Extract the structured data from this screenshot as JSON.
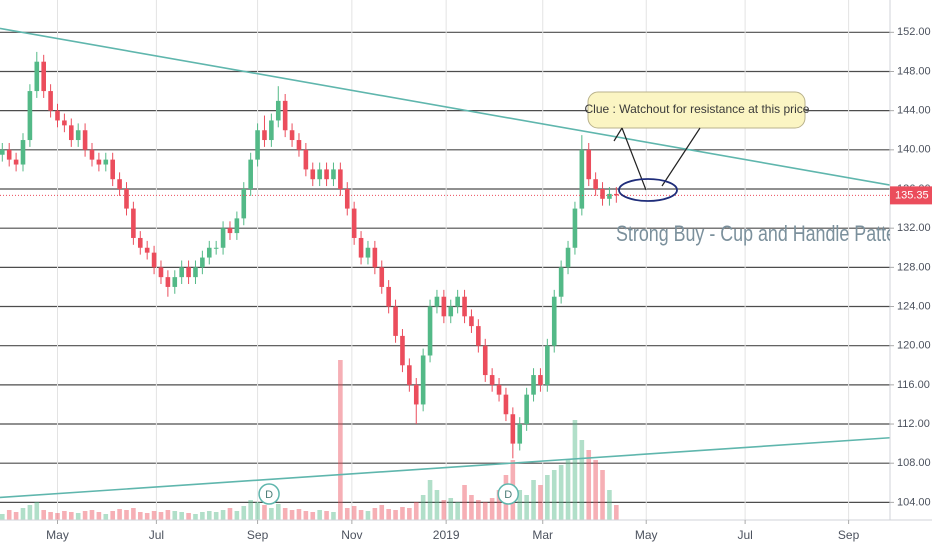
{
  "chart_data": {
    "type": "candlestick",
    "x": [
      1,
      4,
      7,
      10,
      13,
      16,
      19,
      22,
      25,
      28,
      31,
      34,
      37,
      40,
      43,
      46,
      49,
      52,
      55,
      58,
      61,
      64,
      67,
      70,
      73,
      76,
      79,
      82,
      85,
      88,
      91,
      94,
      97,
      100,
      103,
      106,
      109,
      112,
      115,
      118,
      121,
      124,
      127,
      130,
      133,
      136,
      139,
      142,
      145,
      148,
      151,
      154,
      157,
      160,
      163,
      166,
      169,
      172,
      175,
      178,
      181,
      184,
      187,
      190,
      193,
      196,
      199,
      202,
      205,
      208,
      211,
      214,
      217,
      220,
      223,
      226,
      229,
      232,
      235,
      238,
      241,
      244,
      247,
      250,
      253,
      256,
      259,
      262,
      265,
      268
    ],
    "open": [
      139.5,
      140,
      139,
      138.5,
      141,
      146,
      149,
      146,
      144,
      143,
      142.5,
      141,
      142,
      140,
      139,
      138.5,
      139,
      137,
      136,
      134,
      131,
      130,
      129.5,
      128,
      127,
      126,
      127,
      128,
      127,
      128,
      129,
      130,
      130,
      132,
      131.5,
      133,
      136,
      139,
      142,
      141,
      143,
      145,
      142,
      141,
      140,
      138,
      137,
      138,
      137,
      138,
      136,
      134,
      131,
      129,
      130,
      128,
      126,
      124,
      121,
      118,
      116,
      114,
      119,
      124,
      125,
      123,
      124,
      125,
      123,
      122,
      120,
      117,
      116,
      115,
      113,
      110,
      112,
      115,
      117,
      116,
      120,
      125,
      128,
      130,
      134,
      140,
      137,
      136,
      135,
      135.5
    ],
    "high": [
      140.7,
      140.7,
      139.7,
      141.7,
      146.7,
      150,
      149.7,
      146.7,
      144.7,
      143.7,
      143.2,
      142.7,
      142.7,
      140.7,
      139.7,
      139.7,
      139.7,
      137.7,
      136.7,
      134.7,
      131.7,
      130.7,
      130.2,
      128.7,
      127.7,
      127.7,
      128.7,
      128.7,
      128.7,
      129.7,
      130.7,
      130.7,
      132.7,
      132.7,
      133.7,
      136.7,
      139.7,
      142.7,
      143.5,
      143.7,
      146.5,
      145.7,
      142.7,
      141.7,
      140.7,
      138.7,
      138.7,
      138.7,
      138.7,
      138.7,
      136.7,
      134.7,
      131.7,
      130.7,
      130.7,
      128.7,
      126.7,
      124.7,
      121.7,
      118.7,
      116.7,
      119.7,
      124.7,
      125.7,
      125.7,
      124.7,
      125.7,
      125.7,
      123.7,
      122.7,
      120.7,
      117.7,
      116.7,
      115.7,
      113.7,
      112.7,
      115.7,
      117.7,
      117.7,
      120.7,
      125.7,
      128.7,
      130.7,
      134.7,
      141.5,
      140.7,
      137.7,
      136.7,
      136.2,
      136.2
    ],
    "low": [
      138.8,
      138.3,
      137.8,
      137.8,
      140.3,
      145.3,
      145.3,
      143.3,
      142.3,
      141.8,
      140.3,
      140.3,
      139.3,
      138.3,
      137.8,
      137.8,
      136.3,
      135.3,
      133.3,
      130.3,
      129.3,
      128.8,
      127.3,
      126.3,
      125,
      125.3,
      126.3,
      126.3,
      126.3,
      127.3,
      128.3,
      129.3,
      129.3,
      130.8,
      130.8,
      132.3,
      135.3,
      138.3,
      140.3,
      140.3,
      142.3,
      141.3,
      140.3,
      139.3,
      137.3,
      136.3,
      136.3,
      136.3,
      136.3,
      135.3,
      133.3,
      130.3,
      128.3,
      128.3,
      127.3,
      125.3,
      123.3,
      120.3,
      117.3,
      115.3,
      112,
      113.3,
      118.3,
      123.3,
      122.3,
      122.3,
      123.3,
      122.3,
      121.3,
      119.3,
      116.3,
      115.3,
      114.3,
      112.3,
      108.5,
      109.3,
      111.3,
      114.3,
      115.3,
      115.3,
      119.3,
      124.3,
      127.3,
      129.3,
      133.3,
      136.3,
      135.3,
      134.3,
      134.3,
      134.6
    ],
    "close": [
      140,
      139,
      138.5,
      141,
      146,
      149,
      146,
      144,
      143,
      142.5,
      141,
      142,
      140,
      139,
      138.5,
      139,
      137,
      136,
      134,
      131,
      130,
      129.5,
      128,
      127,
      126,
      127,
      128,
      127,
      128,
      129,
      130,
      130,
      132,
      131.5,
      133,
      136,
      139,
      142,
      141,
      143,
      145,
      142,
      141,
      140,
      138,
      137,
      138,
      137,
      138,
      136,
      134,
      131,
      129,
      130,
      128,
      126,
      124,
      121,
      118,
      116,
      114,
      119,
      124,
      125,
      123,
      124,
      125,
      123,
      122,
      120,
      117,
      116,
      115,
      113,
      110,
      112,
      115,
      117,
      116,
      120,
      125,
      128,
      130,
      134,
      140,
      137,
      136,
      135,
      135.5,
      135.35
    ],
    "volume": [
      6,
      10,
      8,
      12,
      15,
      18,
      10,
      8,
      7,
      9,
      8,
      7,
      9,
      10,
      8,
      6,
      9,
      11,
      10,
      12,
      8,
      7,
      9,
      8,
      10,
      9,
      8,
      7,
      6,
      8,
      9,
      8,
      10,
      12,
      9,
      14,
      20,
      18,
      15,
      12,
      16,
      12,
      10,
      11,
      9,
      8,
      10,
      9,
      8,
      160,
      12,
      14,
      10,
      9,
      12,
      15,
      11,
      10,
      13,
      12,
      18,
      25,
      40,
      30,
      20,
      22,
      18,
      35,
      25,
      20,
      18,
      22,
      30,
      45,
      60,
      30,
      25,
      40,
      35,
      45,
      50,
      55,
      60,
      100,
      80,
      70,
      60,
      50,
      30,
      15
    ],
    "up_color": "#53b987",
    "down_color": "#eb4d5c",
    "xlim": [
      0,
      387
    ],
    "xticks": [
      {
        "value": 25,
        "label": "May"
      },
      {
        "value": 68,
        "label": "Jul"
      },
      {
        "value": 112,
        "label": "Sep"
      },
      {
        "value": 153,
        "label": "Nov"
      },
      {
        "value": 194,
        "label": "2019"
      },
      {
        "value": 236,
        "label": "Mar"
      },
      {
        "value": 281,
        "label": "May"
      },
      {
        "value": 324,
        "label": "Jul"
      },
      {
        "value": 369,
        "label": "Sep"
      }
    ],
    "ylim": [
      102.2,
      155.3
    ],
    "yticks": [
      {
        "value": 152,
        "label": "152.00"
      },
      {
        "value": 148,
        "label": "148.00"
      },
      {
        "value": 144,
        "label": "144.00"
      },
      {
        "value": 140,
        "label": "140.00"
      },
      {
        "value": 136,
        "label": "136.00"
      },
      {
        "value": 132,
        "label": "132.00"
      },
      {
        "value": 128,
        "label": "128.00"
      },
      {
        "value": 124,
        "label": "124.00"
      },
      {
        "value": 120,
        "label": "120.00"
      },
      {
        "value": 116,
        "label": "116.00"
      },
      {
        "value": 112,
        "label": "112.00"
      },
      {
        "value": 108,
        "label": "108.00"
      },
      {
        "value": 104,
        "label": "104.00"
      }
    ],
    "grid": true,
    "last_price": 135.35,
    "trendlines": [
      {
        "x": [
          0,
          387
        ],
        "y": [
          152.4,
          136.4
        ],
        "color": "#5fb6ad"
      },
      {
        "x": [
          0,
          387
        ],
        "y": [
          104.5,
          110.6
        ],
        "color": "#5fb6ad"
      }
    ],
    "markers": [
      {
        "x": 117,
        "label": "D"
      },
      {
        "x": 221,
        "label": "D"
      }
    ],
    "callout": "Clue : Watchout for resistance at this price",
    "annotation": "Strong Buy - Cup and Handle Patte"
  }
}
